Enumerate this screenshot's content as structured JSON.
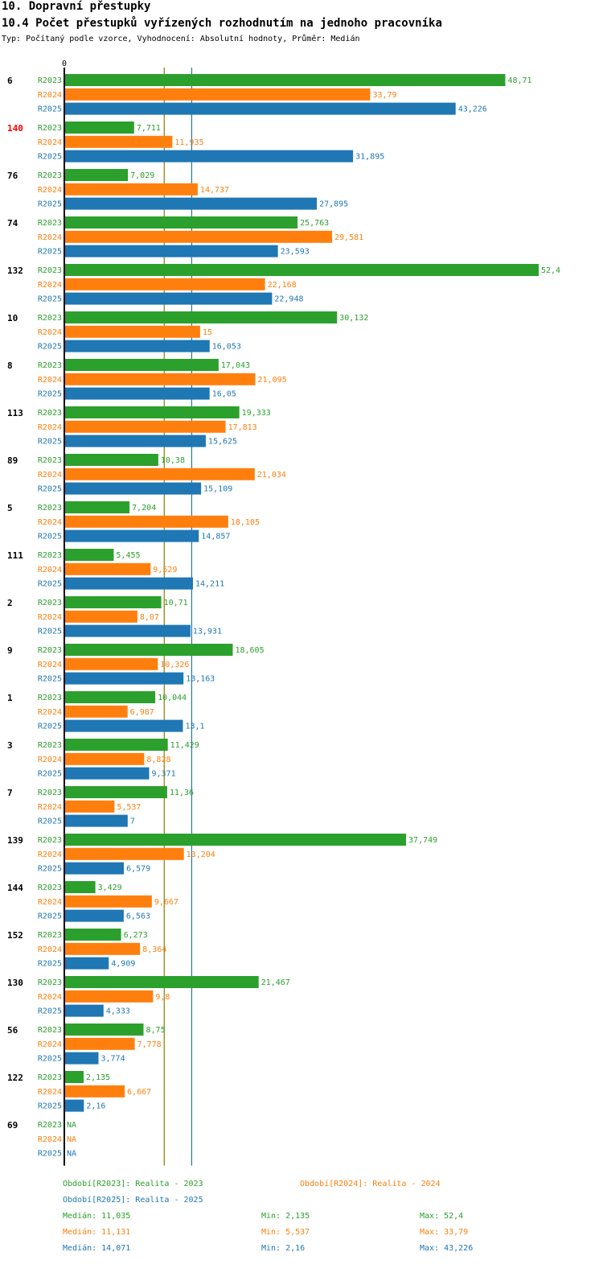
{
  "header": {
    "section": "10. Dopravní přestupky",
    "title": "10.4 Počet přestupků vyřízených rozhodnutím na jednoho pracovníka",
    "subtitle": "Typ: Počítaný podle vzorce, Vyhodnocení: Absolutní hodnoty, Průměr: Medián"
  },
  "colors": {
    "R2023": "#2ca02c",
    "R2024": "#ff7f0e",
    "R2025": "#1f77b4",
    "highlight": "#ff0000",
    "median_line_2023": "#8c7a00",
    "median_line_2025": "#1f77b4"
  },
  "chart_data": {
    "type": "bar",
    "orientation": "horizontal",
    "title": "10.4 Počet přestupků vyřízených rozhodnutím na jednoho pracovníka",
    "axis_zero_label": "0",
    "xlim": [
      0,
      52.4
    ],
    "series_names": [
      "R2023",
      "R2024",
      "R2025"
    ],
    "groups": [
      {
        "label": "6",
        "highlight": false,
        "values": [
          48.71,
          33.79,
          43.226
        ],
        "labels": [
          "48,71",
          "33,79",
          "43,226"
        ]
      },
      {
        "label": "140",
        "highlight": true,
        "values": [
          7.711,
          11.935,
          31.895
        ],
        "labels": [
          "7,711",
          "11,935",
          "31,895"
        ]
      },
      {
        "label": "76",
        "highlight": false,
        "values": [
          7.029,
          14.737,
          27.895
        ],
        "labels": [
          "7,029",
          "14,737",
          "27,895"
        ]
      },
      {
        "label": "74",
        "highlight": false,
        "values": [
          25.763,
          29.581,
          23.593
        ],
        "labels": [
          "25,763",
          "29,581",
          "23,593"
        ]
      },
      {
        "label": "132",
        "highlight": false,
        "values": [
          52.4,
          22.168,
          22.948
        ],
        "labels": [
          "52,4",
          "22,168",
          "22,948"
        ]
      },
      {
        "label": "10",
        "highlight": false,
        "values": [
          30.132,
          15,
          16.053
        ],
        "labels": [
          "30,132",
          "15",
          "16,053"
        ]
      },
      {
        "label": "8",
        "highlight": false,
        "values": [
          17.043,
          21.095,
          16.05
        ],
        "labels": [
          "17,043",
          "21,095",
          "16,05"
        ]
      },
      {
        "label": "113",
        "highlight": false,
        "values": [
          19.333,
          17.813,
          15.625
        ],
        "labels": [
          "19,333",
          "17,813",
          "15,625"
        ]
      },
      {
        "label": "89",
        "highlight": false,
        "values": [
          10.38,
          21.034,
          15.109
        ],
        "labels": [
          "10,38",
          "21,034",
          "15,109"
        ]
      },
      {
        "label": "5",
        "highlight": false,
        "values": [
          7.204,
          18.105,
          14.857
        ],
        "labels": [
          "7,204",
          "18,105",
          "14,857"
        ]
      },
      {
        "label": "111",
        "highlight": false,
        "values": [
          5.455,
          9.529,
          14.211
        ],
        "labels": [
          "5,455",
          "9,529",
          "14,211"
        ]
      },
      {
        "label": "2",
        "highlight": false,
        "values": [
          10.71,
          8.07,
          13.931
        ],
        "labels": [
          "10,71",
          "8,07",
          "13,931"
        ]
      },
      {
        "label": "9",
        "highlight": false,
        "values": [
          18.605,
          10.326,
          13.163
        ],
        "labels": [
          "18,605",
          "10,326",
          "13,163"
        ]
      },
      {
        "label": "1",
        "highlight": false,
        "values": [
          10.044,
          6.987,
          13.1
        ],
        "labels": [
          "10,044",
          "6,987",
          "13,1"
        ]
      },
      {
        "label": "3",
        "highlight": false,
        "values": [
          11.429,
          8.828,
          9.371
        ],
        "labels": [
          "11,429",
          "8,828",
          "9,371"
        ]
      },
      {
        "label": "7",
        "highlight": false,
        "values": [
          11.36,
          5.537,
          7
        ],
        "labels": [
          "11,36",
          "5,537",
          "7"
        ]
      },
      {
        "label": "139",
        "highlight": false,
        "values": [
          37.749,
          13.204,
          6.579
        ],
        "labels": [
          "37,749",
          "13,204",
          "6,579"
        ]
      },
      {
        "label": "144",
        "highlight": false,
        "values": [
          3.429,
          9.667,
          6.563
        ],
        "labels": [
          "3,429",
          "9,667",
          "6,563"
        ]
      },
      {
        "label": "152",
        "highlight": false,
        "values": [
          6.273,
          8.364,
          4.909
        ],
        "labels": [
          "6,273",
          "8,364",
          "4,909"
        ]
      },
      {
        "label": "130",
        "highlight": false,
        "values": [
          21.467,
          9.8,
          4.333
        ],
        "labels": [
          "21,467",
          "9,8",
          "4,333"
        ]
      },
      {
        "label": "56",
        "highlight": false,
        "values": [
          8.75,
          7.778,
          3.774
        ],
        "labels": [
          "8,75",
          "7,778",
          "3,774"
        ]
      },
      {
        "label": "122",
        "highlight": false,
        "values": [
          2.135,
          6.667,
          2.16
        ],
        "labels": [
          "2,135",
          "6,667",
          "2,16"
        ]
      },
      {
        "label": "69",
        "highlight": false,
        "values": [
          null,
          null,
          null
        ],
        "labels": [
          "NA",
          "NA",
          "NA"
        ]
      }
    ],
    "medians": {
      "R2023": 11.035,
      "R2024": 11.131,
      "R2025": 14.071
    },
    "median_lines": [
      "R2023",
      "R2025"
    ]
  },
  "legend": {
    "r2023": "Období[R2023]: Realita - 2023",
    "r2024": "Období[R2024]: Realita - 2024",
    "r2025": "Období[R2025]: Realita - 2025"
  },
  "stats": [
    {
      "series": "R2023",
      "median": "Medián: 11,035",
      "min": "Min: 2,135",
      "max": "Max: 52,4"
    },
    {
      "series": "R2024",
      "median": "Medián: 11,131",
      "min": "Min: 5,537",
      "max": "Max: 33,79"
    },
    {
      "series": "R2025",
      "median": "Medián: 14,071",
      "min": "Min: 2,16",
      "max": "Max: 43,226"
    }
  ]
}
